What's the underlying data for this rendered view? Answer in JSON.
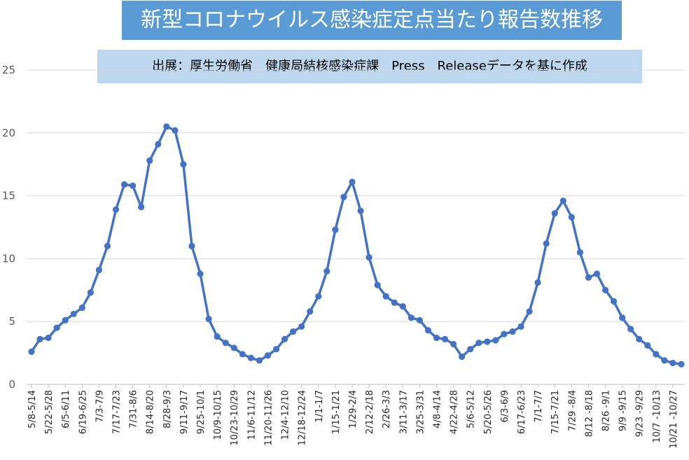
{
  "chart_data": {
    "type": "line",
    "title": "新型コロナウイルス感染症定点当たり報告数推移",
    "subtitle": "出展：厚生労働省　健康局結核感染症課　Press　Releaseデータを基に作成",
    "xlabel": "",
    "ylabel": "",
    "ylim": [
      0,
      25
    ],
    "yticks": [
      0,
      5,
      10,
      15,
      20,
      25
    ],
    "grid": true,
    "legend": "none",
    "colors": {
      "line": "#4472c4",
      "grid": "#d9d9d9",
      "title_bg": "#5b9bd5",
      "source_bg": "#bdd7ee"
    },
    "tick_labels": [
      "5/8-5/14",
      "5/22-5/28",
      "6/5-6/11",
      "6/19-6/25",
      "7/3-7/9",
      "7/17-7/23",
      "7/31-8/6",
      "8/14-8/20",
      "8/28-9/3",
      "9/11-9/17",
      "9/25-10/1",
      "10/9-10/15",
      "10/23-10/29",
      "11/6-11/12",
      "11/20-11/26",
      "12/4-12/10",
      "12/18-12/24",
      "1/1-1/7",
      "1/15-1/21",
      "1/29-2/4",
      "2/12-2/18",
      "2/26-3/3",
      "3/11-3/17",
      "3/25-3/31",
      "4/8-4/14",
      "4/22-4/28",
      "5/6-5/12",
      "5/20-5/26",
      "6/3-6/9",
      "6/17-6/23",
      "7/1-7/7",
      "7/15-7/21",
      "7/29 -8/4",
      "8/12 -8/18",
      "8/26 -9/1",
      "9/9 -9/15",
      "9/23 -9/29",
      "10/7 -10/13",
      "10/21 -10/27"
    ],
    "series": [
      {
        "values": [
          2.6,
          3.6,
          3.7,
          4.5,
          5.1,
          5.6,
          6.1,
          7.3,
          9.1,
          11.0,
          13.9,
          15.9,
          15.8,
          14.1,
          17.8,
          19.1,
          20.5,
          20.2,
          17.5,
          11.0,
          8.8,
          5.2,
          3.8,
          3.3,
          2.9,
          2.4,
          2.1,
          1.9,
          2.3,
          2.8,
          3.6,
          4.2,
          4.6,
          5.8,
          7.0,
          9.0,
          12.3,
          14.9,
          16.1,
          13.8,
          10.1,
          7.9,
          7.0,
          6.5,
          6.2,
          5.3,
          5.1,
          4.3,
          3.7,
          3.6,
          3.2,
          2.2,
          2.8,
          3.3,
          3.4,
          3.5,
          4.0,
          4.2,
          4.6,
          5.8,
          8.1,
          11.2,
          13.6,
          14.6,
          13.3,
          10.5,
          8.5,
          8.8,
          7.5,
          6.6,
          5.3,
          4.4,
          3.6,
          3.1,
          2.4,
          1.9,
          1.7,
          1.6
        ]
      }
    ]
  }
}
